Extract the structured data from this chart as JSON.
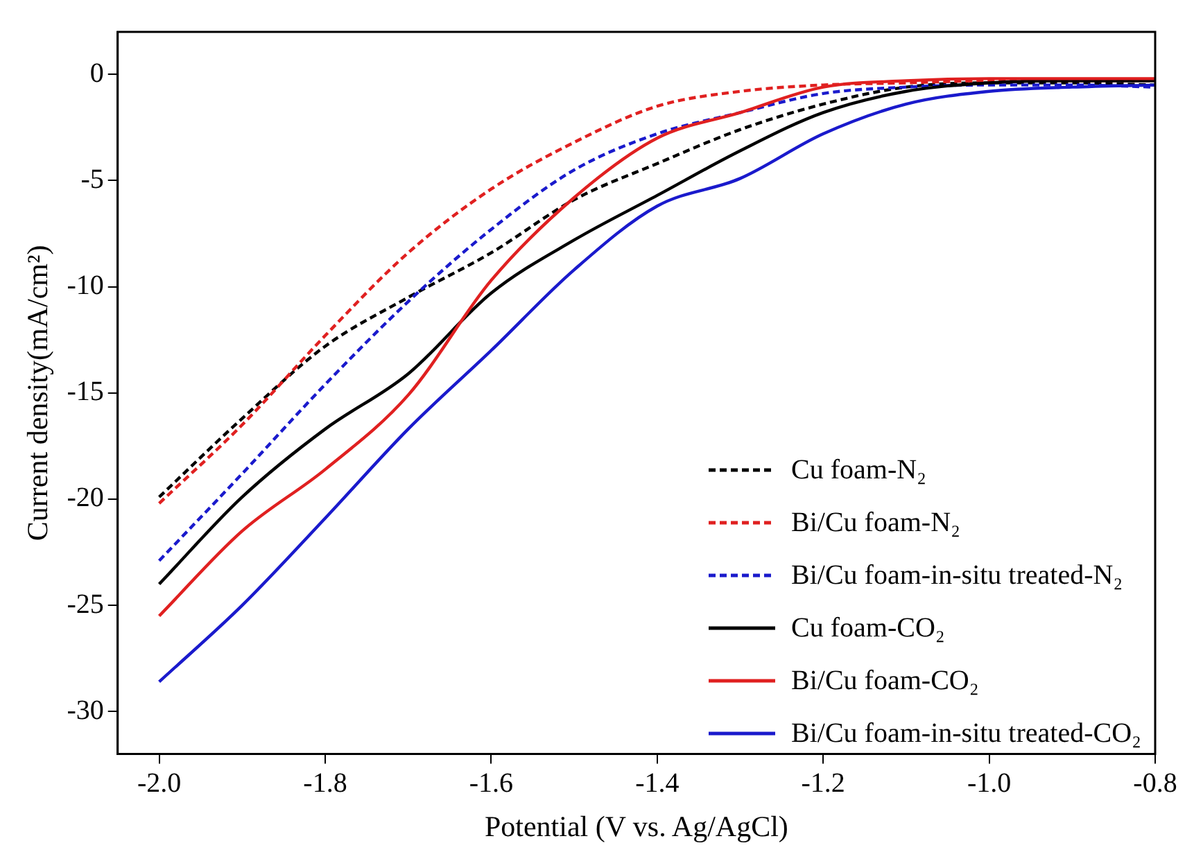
{
  "chart_data": {
    "type": "line",
    "xlabel": "Potential (V vs. Ag/AgCl)",
    "ylabel": "Current density(mA/cm²)",
    "x": [
      -2.0,
      -1.9,
      -1.8,
      -1.7,
      -1.6,
      -1.5,
      -1.4,
      -1.3,
      -1.2,
      -1.1,
      -1.0,
      -0.9,
      -0.8
    ],
    "xlim": [
      -2.05,
      -0.8
    ],
    "xticks": [
      {
        "value": -2,
        "label": "-2.0"
      },
      -1.8,
      -1.6,
      -1.4,
      -1.2,
      {
        "value": -1,
        "label": "-1.0"
      },
      -0.8
    ],
    "ylim": [
      -32,
      2
    ],
    "yticks": [
      -30,
      -25,
      -20,
      -15,
      -10,
      -5,
      0
    ],
    "grid": false,
    "legend": "bottom right",
    "marker": "none",
    "series": [
      {
        "name": "Cu foam-N₂",
        "color": "#000000",
        "line_style": "dashed",
        "values": [
          -19.9,
          -16.2,
          -12.8,
          -10.5,
          -8.4,
          -5.9,
          -4.2,
          -2.6,
          -1.4,
          -0.6,
          -0.4,
          -0.4,
          -0.5
        ]
      },
      {
        "name": "Bi/Cu foam-N₂",
        "color": "#e02020",
        "line_style": "dashed",
        "values": [
          -20.2,
          -16.5,
          -12.3,
          -8.4,
          -5.4,
          -3.2,
          -1.5,
          -0.8,
          -0.5,
          -0.4,
          -0.3,
          -0.3,
          -0.3
        ]
      },
      {
        "name": "Bi/Cu foam-in-situ treated-N₂",
        "color": "#1a1acc",
        "line_style": "dashed",
        "values": [
          -22.9,
          -18.8,
          -14.6,
          -10.7,
          -7.3,
          -4.5,
          -2.8,
          -1.8,
          -0.9,
          -0.6,
          -0.5,
          -0.5,
          -0.6
        ]
      },
      {
        "name": "Cu foam-CO₂",
        "color": "#000000",
        "line_style": "solid",
        "values": [
          -24.0,
          -19.9,
          -16.7,
          -14.1,
          -10.3,
          -7.8,
          -5.7,
          -3.6,
          -1.8,
          -0.8,
          -0.4,
          -0.3,
          -0.3
        ]
      },
      {
        "name": "Bi/Cu foam-CO₂",
        "color": "#e02020",
        "line_style": "solid",
        "values": [
          -25.5,
          -21.5,
          -18.6,
          -15.1,
          -9.7,
          -5.8,
          -3.0,
          -1.8,
          -0.6,
          -0.3,
          -0.2,
          -0.2,
          -0.2
        ]
      },
      {
        "name": "Bi/Cu foam-in-situ treated-CO₂",
        "color": "#1a1acc",
        "line_style": "solid",
        "values": [
          -28.6,
          -25.0,
          -20.9,
          -16.7,
          -13.0,
          -9.2,
          -6.2,
          -4.9,
          -2.8,
          -1.4,
          -0.8,
          -0.6,
          -0.5
        ]
      }
    ]
  }
}
